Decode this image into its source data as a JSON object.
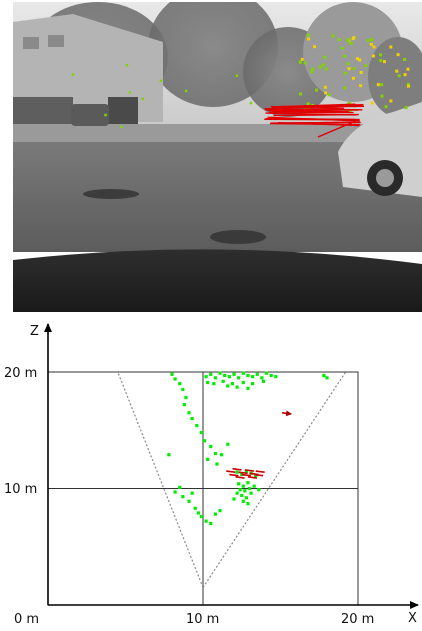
{
  "camera_image": {
    "description_colors": {
      "sky": "#e4e4e4",
      "road": "#707070",
      "flow_static": "#7fd400",
      "flow_moving": "#e00000",
      "flow_mid": "#f0d000"
    }
  },
  "topview": {
    "axis_labels": {
      "x": "X",
      "z": "Z"
    },
    "x_ticks": [
      "0 m",
      "10 m",
      "20 m"
    ],
    "z_ticks": [
      "10 m",
      "20 m"
    ],
    "colors": {
      "static_points": "#00ee00",
      "moving_points": "#cc0000",
      "frustum": "#888888",
      "grid": "#333333"
    }
  },
  "chart_data": {
    "type": "scatter",
    "x_range": [
      0,
      20
    ],
    "z_range": [
      0,
      20
    ],
    "grid": true,
    "camera_origin": [
      10,
      1.5
    ],
    "frustum_left_far": [
      4.5,
      20
    ],
    "frustum_right_far": [
      19.2,
      20
    ],
    "series": [
      {
        "points": [
          [
            10.2,
            19.6
          ],
          [
            10.5,
            19.8
          ],
          [
            10.8,
            19.5
          ],
          [
            11.1,
            19.9
          ],
          [
            11.4,
            19.7
          ],
          [
            11.7,
            19.6
          ],
          [
            12.0,
            19.8
          ],
          [
            12.3,
            19.5
          ],
          [
            12.6,
            19.9
          ],
          [
            12.9,
            19.7
          ],
          [
            13.2,
            19.6
          ],
          [
            13.5,
            19.8
          ],
          [
            13.8,
            19.5
          ],
          [
            14.1,
            19.9
          ],
          [
            14.4,
            19.7
          ],
          [
            14.7,
            19.6
          ],
          [
            10.3,
            19.1
          ],
          [
            10.7,
            19.0
          ],
          [
            11.3,
            19.2
          ],
          [
            11.9,
            19.0
          ],
          [
            12.6,
            19.1
          ],
          [
            13.2,
            19.0
          ],
          [
            13.9,
            19.2
          ],
          [
            12.2,
            18.7
          ],
          [
            12.9,
            18.6
          ],
          [
            11.6,
            18.8
          ],
          [
            17.8,
            19.7
          ],
          [
            18.0,
            19.5
          ],
          [
            8.0,
            19.8
          ],
          [
            8.2,
            19.4
          ],
          [
            8.5,
            19.0
          ],
          [
            8.7,
            18.5
          ],
          [
            8.9,
            17.8
          ],
          [
            8.8,
            17.2
          ],
          [
            9.1,
            16.5
          ],
          [
            9.3,
            16.0
          ],
          [
            9.6,
            15.4
          ],
          [
            9.9,
            14.8
          ],
          [
            10.1,
            14.1
          ],
          [
            10.5,
            13.6
          ],
          [
            10.8,
            13.0
          ],
          [
            10.3,
            12.5
          ],
          [
            11.2,
            12.9
          ],
          [
            11.6,
            13.8
          ],
          [
            10.9,
            12.1
          ],
          [
            7.8,
            12.9
          ],
          [
            12.2,
            11.4
          ],
          [
            12.5,
            11.2
          ],
          [
            12.8,
            11.5
          ],
          [
            13.1,
            11.3
          ],
          [
            13.4,
            11.1
          ],
          [
            12.3,
            10.4
          ],
          [
            12.6,
            10.2
          ],
          [
            12.9,
            10.5
          ],
          [
            12.4,
            9.9
          ],
          [
            12.7,
            9.8
          ],
          [
            13.0,
            10.0
          ],
          [
            12.2,
            9.6
          ],
          [
            12.5,
            9.4
          ],
          [
            12.8,
            9.2
          ],
          [
            13.1,
            9.6
          ],
          [
            12.6,
            8.9
          ],
          [
            12.9,
            8.7
          ],
          [
            13.3,
            10.2
          ],
          [
            13.6,
            9.9
          ],
          [
            12.0,
            9.1
          ],
          [
            8.5,
            10.1
          ],
          [
            8.7,
            9.3
          ],
          [
            9.1,
            8.9
          ],
          [
            9.5,
            8.3
          ],
          [
            9.9,
            7.6
          ],
          [
            10.2,
            7.2
          ],
          [
            10.5,
            7.0
          ],
          [
            10.8,
            7.8
          ],
          [
            11.1,
            8.1
          ],
          [
            9.7,
            7.9
          ],
          [
            8.2,
            9.7
          ],
          [
            9.3,
            9.6
          ]
        ]
      },
      {
        "points": [
          [
            11.5,
            11.5
          ],
          [
            11.9,
            11.7
          ],
          [
            12.3,
            11.4
          ],
          [
            12.7,
            11.6
          ],
          [
            13.0,
            11.3
          ],
          [
            13.4,
            11.5
          ],
          [
            11.7,
            11.2
          ],
          [
            12.1,
            11.0
          ],
          [
            12.5,
            11.2
          ],
          [
            12.9,
            11.0
          ],
          [
            13.3,
            11.2
          ],
          [
            15.1,
            16.5
          ]
        ]
      }
    ]
  }
}
